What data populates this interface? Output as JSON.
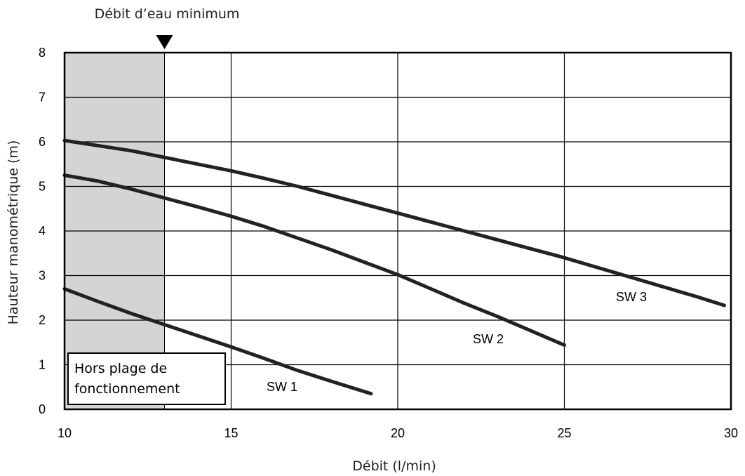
{
  "chart_data": {
    "type": "line",
    "xlabel": "Débit (l/min)",
    "ylabel": "Hauteur manométrique (m)",
    "xlim": [
      10,
      30
    ],
    "ylim": [
      0,
      8
    ],
    "x_ticks": [
      10,
      15,
      20,
      25,
      30
    ],
    "y_ticks": [
      0,
      1,
      2,
      3,
      4,
      5,
      6,
      7,
      8
    ],
    "grid": true,
    "series": [
      {
        "name": "SW 1",
        "x": [
          10,
          11,
          12,
          13,
          14,
          15,
          16,
          17,
          18,
          19.2
        ],
        "y": [
          2.7,
          2.42,
          2.15,
          1.9,
          1.65,
          1.4,
          1.14,
          0.87,
          0.63,
          0.35
        ]
      },
      {
        "name": "SW 2",
        "x": [
          10,
          11,
          12,
          13,
          14,
          15,
          16,
          17,
          18,
          19,
          20,
          21,
          22,
          23,
          24,
          25
        ],
        "y": [
          5.25,
          5.12,
          4.94,
          4.74,
          4.54,
          4.33,
          4.1,
          3.84,
          3.58,
          3.3,
          3.02,
          2.7,
          2.38,
          2.08,
          1.76,
          1.44
        ]
      },
      {
        "name": "SW 3",
        "x": [
          10,
          12,
          13,
          14,
          15,
          16,
          17,
          18,
          19,
          20,
          21,
          22,
          23,
          24,
          25,
          26,
          27,
          28,
          29,
          29.8
        ],
        "y": [
          6.03,
          5.8,
          5.65,
          5.5,
          5.35,
          5.18,
          5.0,
          4.8,
          4.6,
          4.4,
          4.2,
          4.0,
          3.8,
          3.6,
          3.4,
          3.18,
          2.96,
          2.74,
          2.52,
          2.33
        ]
      }
    ],
    "shaded_region": {
      "x": [
        10,
        13
      ],
      "label_line1": "Hors plage de",
      "label_line2": "fonctionnement"
    },
    "marker": {
      "x": 13,
      "label": "Débit d’eau minimum"
    },
    "colors": {
      "line": "#222222",
      "grid": "#000000",
      "shade": "#d4d4d6"
    }
  }
}
